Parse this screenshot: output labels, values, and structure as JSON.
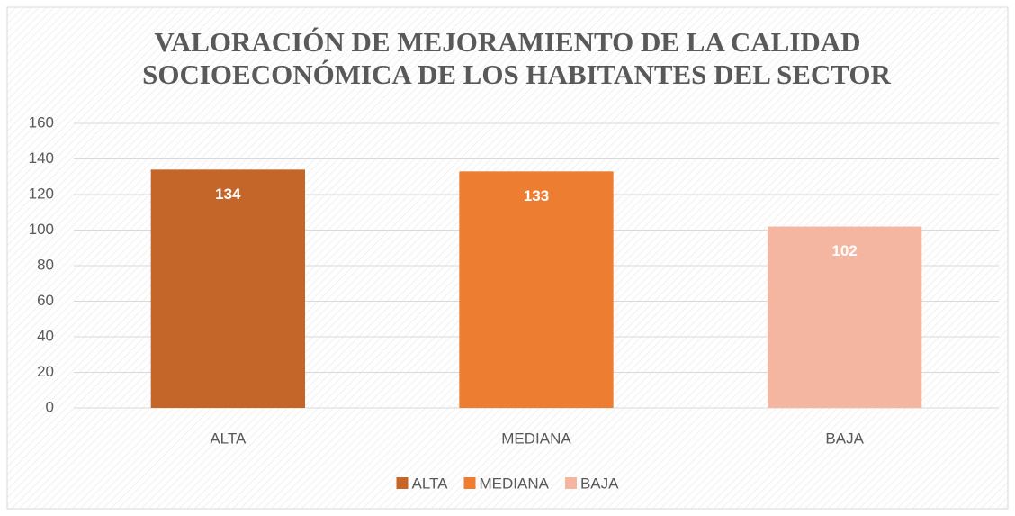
{
  "chart_data": {
    "type": "bar",
    "title": [
      "VALORACIÓN DE MEJORAMIENTO DE LA CALIDAD",
      "SOCIOECONÓMICA DE LOS HABITANTES DEL SECTOR"
    ],
    "categories": [
      "ALTA",
      "MEDIANA",
      "BAJA"
    ],
    "values": [
      134,
      133,
      102
    ],
    "colors": [
      "#C4652A",
      "#ED7D31",
      "#F4B6A0"
    ],
    "ylim": [
      0,
      160
    ],
    "yticks": [
      0,
      20,
      40,
      60,
      80,
      100,
      120,
      140,
      160
    ],
    "grid": true,
    "legend": "bottom"
  }
}
